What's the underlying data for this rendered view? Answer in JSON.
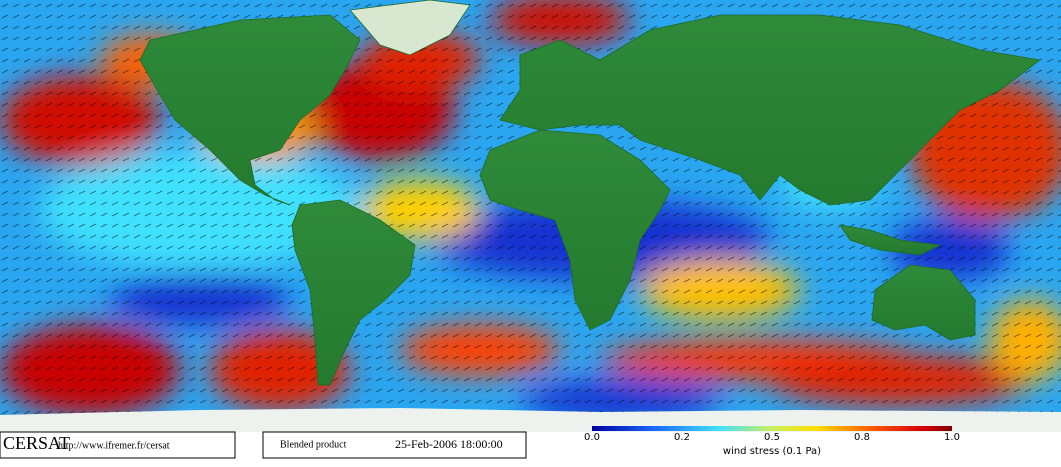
{
  "logo": "CERSAT",
  "url": "http://www.ifremer.fr/cersat",
  "product": "Blended product",
  "date": "25-Feb-2006 18:00:00",
  "colorbar": {
    "ticks": [
      "0.0",
      "0.2",
      "0.5",
      "0.8",
      "1.0"
    ],
    "label": "wind stress (0.1 Pa)"
  }
}
